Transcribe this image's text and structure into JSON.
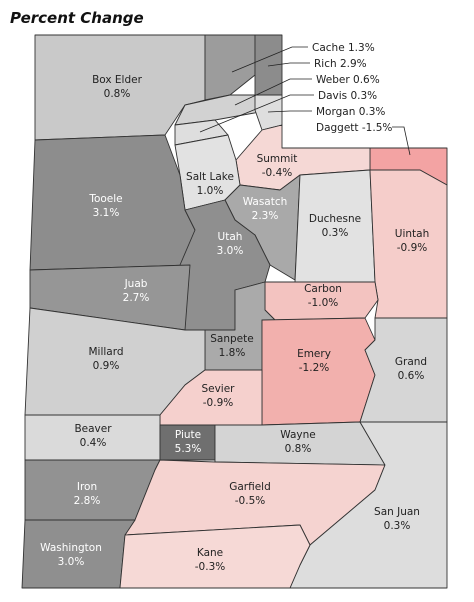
{
  "title": "Percent Change",
  "counties": [
    {
      "name": "Box Elder",
      "change": "0.8%",
      "fill": "#c9c9c9"
    },
    {
      "name": "Cache",
      "change": "1.3%",
      "fill": "#9c9c9c"
    },
    {
      "name": "Rich",
      "change": "2.9%",
      "fill": "#8c8c8c"
    },
    {
      "name": "Weber",
      "change": "0.6%",
      "fill": "#d2d2d2"
    },
    {
      "name": "Davis",
      "change": "0.3%",
      "fill": "#dedede"
    },
    {
      "name": "Morgan",
      "change": "0.3%",
      "fill": "#dedede"
    },
    {
      "name": "Daggett",
      "change": "-1.5%",
      "fill": "#f3a3a3"
    },
    {
      "name": "Summit",
      "change": "-0.4%",
      "fill": "#f5d8d5"
    },
    {
      "name": "Salt Lake",
      "change": "1.0%",
      "fill": "#e2e2e2"
    },
    {
      "name": "Tooele",
      "change": "3.1%",
      "fill": "#8d8d8d"
    },
    {
      "name": "Wasatch",
      "change": "2.3%",
      "fill": "#a9a9a9"
    },
    {
      "name": "Utah",
      "change": "3.0%",
      "fill": "#8f8f8f"
    },
    {
      "name": "Duchesne",
      "change": "0.3%",
      "fill": "#e2e2e2"
    },
    {
      "name": "Uintah",
      "change": "-0.9%",
      "fill": "#f5cdca"
    },
    {
      "name": "Juab",
      "change": "2.7%",
      "fill": "#969696"
    },
    {
      "name": "Carbon",
      "change": "-1.0%",
      "fill": "#f3c3c0"
    },
    {
      "name": "Sanpete",
      "change": "1.8%",
      "fill": "#aaaaaa"
    },
    {
      "name": "Millard",
      "change": "0.9%",
      "fill": "#d0d0d0"
    },
    {
      "name": "Emery",
      "change": "-1.2%",
      "fill": "#f2b0ad"
    },
    {
      "name": "Grand",
      "change": "0.6%",
      "fill": "#d6d6d6"
    },
    {
      "name": "Sevier",
      "change": "-0.9%",
      "fill": "#f5d0cd"
    },
    {
      "name": "Beaver",
      "change": "0.4%",
      "fill": "#dadada"
    },
    {
      "name": "Piute",
      "change": "5.3%",
      "fill": "#6f6f6f"
    },
    {
      "name": "Wayne",
      "change": "0.8%",
      "fill": "#d4d4d4"
    },
    {
      "name": "Iron",
      "change": "2.8%",
      "fill": "#929292"
    },
    {
      "name": "Garfield",
      "change": "-0.5%",
      "fill": "#f5d3d0"
    },
    {
      "name": "San Juan",
      "change": "0.3%",
      "fill": "#dddddd"
    },
    {
      "name": "Washington",
      "change": "3.0%",
      "fill": "#8f8f8f"
    },
    {
      "name": "Kane",
      "change": "-0.3%",
      "fill": "#f6d9d6"
    }
  ]
}
